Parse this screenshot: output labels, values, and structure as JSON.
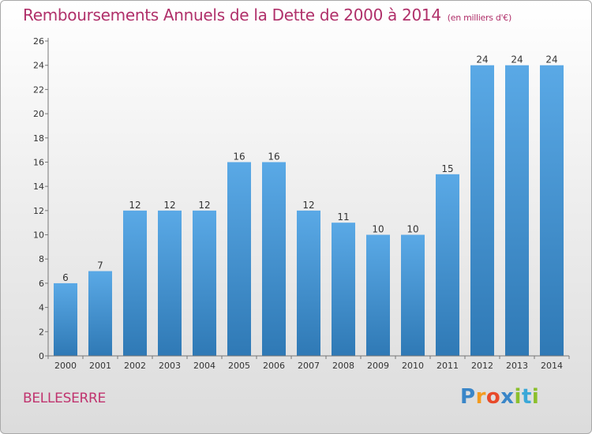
{
  "title": "Remboursements Annuels de la Dette de 2000 à 2014",
  "unit_note": "(en milliers d'€)",
  "commune": "BELLESERRE",
  "logo": {
    "letters": [
      "P",
      "r",
      "o",
      "x",
      "i",
      "t",
      "i"
    ]
  },
  "colors": {
    "bar_top": "#5aa9e6",
    "bar_bottom": "#2f79b5",
    "title": "#b0306a"
  },
  "chart_data": {
    "type": "bar",
    "categories": [
      "2000",
      "2001",
      "2002",
      "2003",
      "2004",
      "2005",
      "2006",
      "2007",
      "2008",
      "2009",
      "2010",
      "2011",
      "2012",
      "2013",
      "2014"
    ],
    "values": [
      6,
      7,
      12,
      12,
      12,
      16,
      16,
      12,
      11,
      10,
      10,
      15,
      24,
      24,
      24
    ],
    "title": "Remboursements Annuels de la Dette de 2000 à 2014",
    "xlabel": "",
    "ylabel": "",
    "ylim": [
      0,
      26
    ],
    "yticks": [
      0,
      2,
      4,
      6,
      8,
      10,
      12,
      14,
      16,
      18,
      20,
      22,
      24,
      26
    ],
    "grid": false,
    "data_labels": true
  }
}
